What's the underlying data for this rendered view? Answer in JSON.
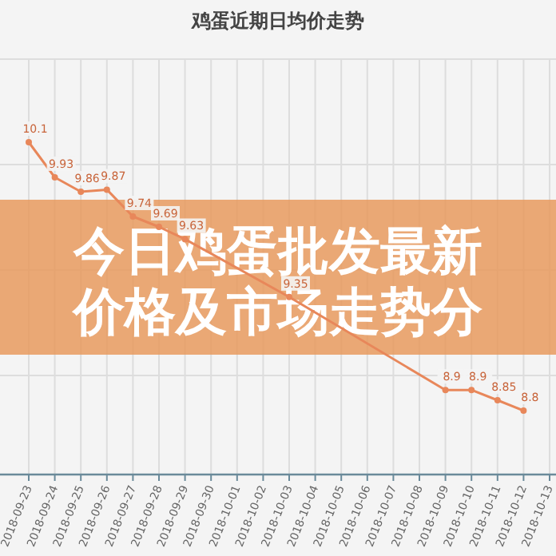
{
  "chart_data": {
    "type": "line",
    "title": "鸡蛋近期日均价走势",
    "annotations": [
      "今日鸡蛋批发最新价格及市场走势分"
    ],
    "categories": [
      "2018-09-23",
      "2018-09-24",
      "2018-09-25",
      "2018-09-26",
      "2018-09-27",
      "2018-09-28",
      "2018-09-29",
      "2018-09-30",
      "2018-10-01",
      "2018-10-02",
      "2018-10-03",
      "2018-10-04",
      "2018-10-05",
      "2018-10-06",
      "2018-10-07",
      "2018-10-08",
      "2018-10-09",
      "2018-10-10",
      "2018-10-11",
      "2018-10-12",
      "2018-10-13"
    ],
    "series": [
      {
        "color": "#e8875a",
        "values": [
          10.1,
          9.93,
          9.86,
          9.87,
          9.74,
          9.69,
          9.63,
          null,
          null,
          null,
          9.35,
          null,
          null,
          null,
          null,
          null,
          8.9,
          8.9,
          8.85,
          8.8,
          null
        ]
      }
    ],
    "data_labels": true,
    "grid": true,
    "marker": "circle",
    "tick_labels": "x"
  }
}
